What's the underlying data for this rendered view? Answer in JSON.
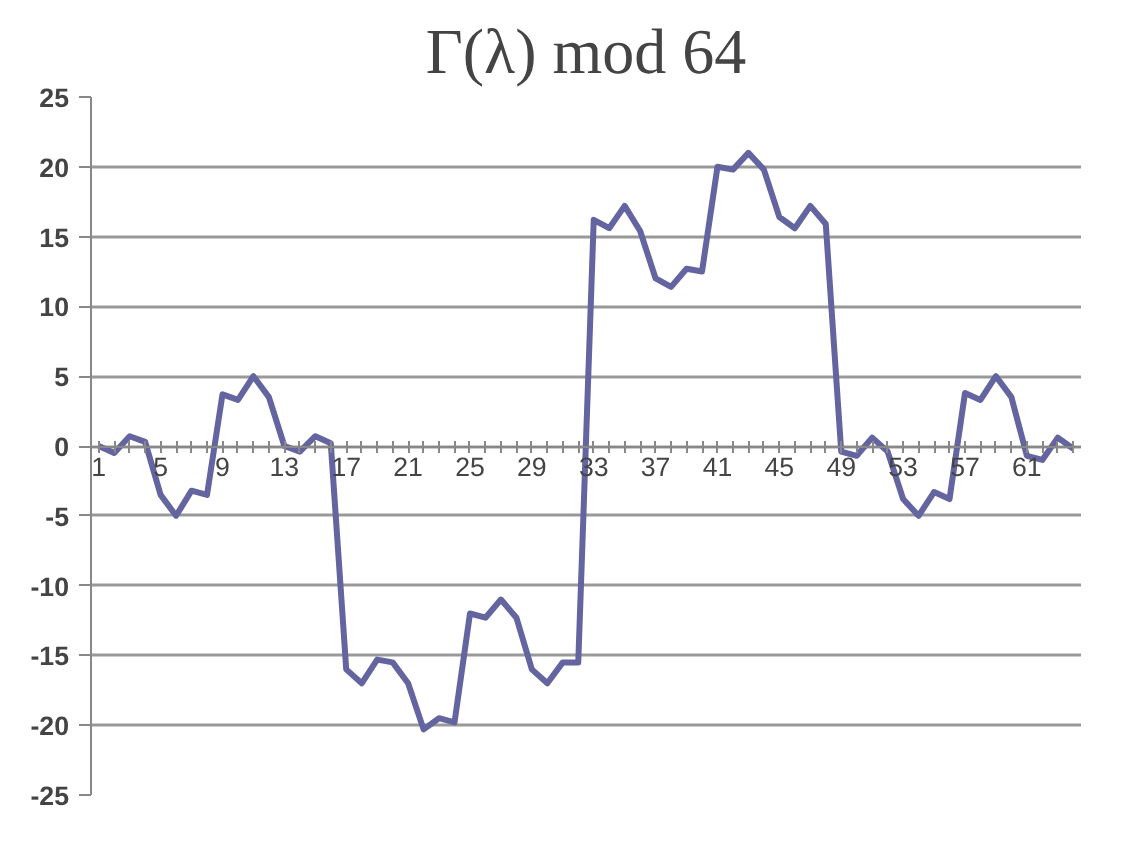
{
  "chart_data": {
    "type": "line",
    "title": "Γ(λ) mod 64",
    "categories": [
      "1",
      null,
      null,
      null,
      "5",
      null,
      null,
      null,
      "9",
      null,
      null,
      null,
      "13",
      null,
      null,
      null,
      "17",
      null,
      null,
      null,
      "21",
      null,
      null,
      null,
      "25",
      null,
      null,
      null,
      "29",
      null,
      null,
      null,
      "33",
      null,
      null,
      null,
      "37",
      null,
      null,
      null,
      "41",
      null,
      null,
      null,
      "45",
      null,
      null,
      null,
      "49",
      null,
      null,
      null,
      "53",
      null,
      null,
      null,
      "57",
      null,
      null,
      null,
      "61",
      null,
      null,
      null
    ],
    "series": [
      {
        "color": "#6464a0",
        "values": [
          0,
          -0.5,
          0.7,
          0.3,
          -3.5,
          -5,
          -3.2,
          -3.5,
          3.7,
          3.3,
          5,
          3.5,
          0,
          -0.4,
          0.7,
          0.2,
          -16,
          -17,
          -15.3,
          -15.5,
          -17,
          -20.3,
          -19.5,
          -19.8,
          -12,
          -12.3,
          -11,
          -12.3,
          -16,
          -17,
          -15.5,
          -15.5,
          16.2,
          15.6,
          17.2,
          15.4,
          12,
          11.4,
          12.7,
          12.5,
          20,
          19.8,
          21,
          19.8,
          16.4,
          15.6,
          17.2,
          15.9,
          -0.4,
          -0.7,
          0.6,
          -0.4,
          -3.8,
          -5,
          -3.3,
          -3.8,
          3.8,
          3.3,
          5,
          3.5,
          -0.7,
          -1,
          0.6,
          -0.2
        ]
      }
    ],
    "ylim": [
      -25,
      25
    ],
    "yticks": [
      -25,
      -20,
      -15,
      -10,
      -5,
      0,
      5,
      10,
      15,
      20,
      25
    ],
    "grid": "y",
    "marker": "none",
    "line_style": "solid"
  }
}
